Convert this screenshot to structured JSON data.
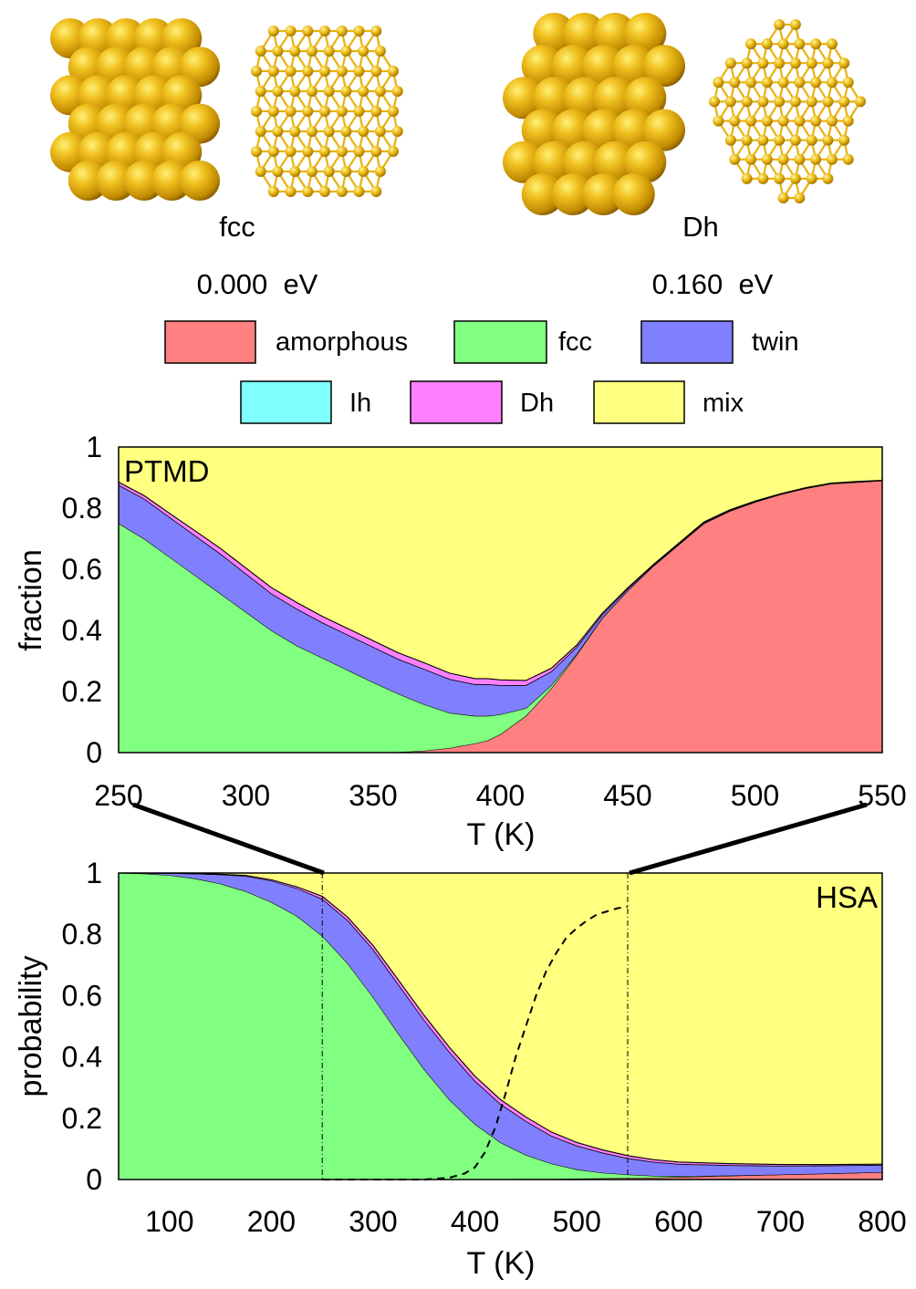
{
  "structures": [
    {
      "name": "fcc",
      "energy": "0.000  eV"
    },
    {
      "name": "Dh",
      "energy": "0.160  eV"
    }
  ],
  "legend": [
    {
      "label": "amorphous",
      "color": "#ff8080"
    },
    {
      "label": "fcc",
      "color": "#80ff80"
    },
    {
      "label": "twin",
      "color": "#8080ff"
    },
    {
      "label": "Ih",
      "color": "#80ffff"
    },
    {
      "label": "Dh",
      "color": "#ff80ff"
    },
    {
      "label": "mix",
      "color": "#ffff80"
    }
  ],
  "colors": {
    "gold": "#e8b20c",
    "gold_light": "#ffe35a",
    "gold_dark": "#9a6d00"
  },
  "chart_data": [
    {
      "type": "area",
      "stacked": true,
      "label": "PTMD",
      "xlabel": "T (K)",
      "ylabel": "fraction",
      "xlim": [
        250,
        550
      ],
      "ylim": [
        0,
        1
      ],
      "xticks": [
        "250",
        "300",
        "350",
        "400",
        "450",
        "500",
        "550"
      ],
      "yticks": [
        "0",
        "0.2",
        "0.4",
        "0.6",
        "0.8",
        "1"
      ],
      "x": [
        250,
        260,
        270,
        280,
        290,
        300,
        310,
        320,
        330,
        340,
        350,
        360,
        370,
        380,
        390,
        395,
        400,
        410,
        420,
        430,
        440,
        450,
        460,
        470,
        480,
        490,
        500,
        510,
        520,
        530,
        540,
        550
      ],
      "series": [
        {
          "name": "amorphous",
          "values": [
            0,
            0,
            0,
            0,
            0,
            0,
            0,
            0,
            0,
            0,
            0,
            0.002,
            0.006,
            0.015,
            0.03,
            0.04,
            0.06,
            0.12,
            0.21,
            0.32,
            0.44,
            0.53,
            0.61,
            0.68,
            0.75,
            0.79,
            0.82,
            0.845,
            0.865,
            0.88,
            0.885,
            0.89
          ]
        },
        {
          "name": "fcc",
          "values": [
            0.75,
            0.7,
            0.64,
            0.58,
            0.52,
            0.46,
            0.4,
            0.35,
            0.31,
            0.27,
            0.23,
            0.19,
            0.152,
            0.115,
            0.09,
            0.08,
            0.065,
            0.025,
            0.01,
            0.003,
            0.001,
            0,
            0,
            0,
            0,
            0,
            0,
            0,
            0,
            0,
            0,
            0
          ]
        },
        {
          "name": "twin",
          "values": [
            0.125,
            0.13,
            0.13,
            0.13,
            0.13,
            0.125,
            0.12,
            0.12,
            0.115,
            0.115,
            0.115,
            0.113,
            0.115,
            0.11,
            0.103,
            0.103,
            0.095,
            0.075,
            0.045,
            0.022,
            0.01,
            0.005,
            0.002,
            0.002,
            0.002,
            0.001,
            0.001,
            0,
            0,
            0,
            0,
            0
          ]
        },
        {
          "name": "Ih",
          "values": [
            0.001,
            0.001,
            0.001,
            0.001,
            0.001,
            0.001,
            0.001,
            0.001,
            0.001,
            0.001,
            0.001,
            0.001,
            0.001,
            0.001,
            0.001,
            0.001,
            0.001,
            0.001,
            0.001,
            0.001,
            0.001,
            0.001,
            0.001,
            0.001,
            0.001,
            0.001,
            0.001,
            0.001,
            0.001,
            0.001,
            0.001,
            0
          ]
        },
        {
          "name": "Dh",
          "values": [
            0.009,
            0.01,
            0.012,
            0.015,
            0.017,
            0.018,
            0.019,
            0.02,
            0.02,
            0.02,
            0.02,
            0.02,
            0.02,
            0.019,
            0.018,
            0.018,
            0.017,
            0.015,
            0.01,
            0.006,
            0.004,
            0.003,
            0.002,
            0.002,
            0.002,
            0.002,
            0.001,
            0.001,
            0.001,
            0.001,
            0.001,
            0.001
          ]
        }
      ],
      "remainder": "mix"
    },
    {
      "type": "area",
      "stacked": true,
      "label": "HSA",
      "xlabel": "T (K)",
      "ylabel": "probability",
      "xlim": [
        50,
        800
      ],
      "ylim": [
        0,
        1
      ],
      "xticks": [
        "100",
        "200",
        "300",
        "400",
        "500",
        "600",
        "700",
        "800"
      ],
      "yticks": [
        "0",
        "0.2",
        "0.4",
        "0.6",
        "0.8",
        "1"
      ],
      "x": [
        50,
        75,
        100,
        125,
        150,
        175,
        200,
        225,
        250,
        275,
        300,
        325,
        350,
        375,
        400,
        425,
        450,
        475,
        500,
        525,
        550,
        575,
        600,
        650,
        700,
        750,
        800
      ],
      "series": [
        {
          "name": "amorphous",
          "values": [
            0,
            0,
            0,
            0,
            0,
            0,
            0,
            0,
            0,
            0,
            0,
            0,
            0,
            0,
            0.001,
            0.001,
            0.002,
            0.002,
            0.003,
            0.004,
            0.005,
            0.006,
            0.008,
            0.012,
            0.016,
            0.02,
            0.024
          ]
        },
        {
          "name": "fcc",
          "values": [
            1.0,
            0.998,
            0.993,
            0.982,
            0.965,
            0.94,
            0.905,
            0.86,
            0.795,
            0.705,
            0.595,
            0.475,
            0.36,
            0.26,
            0.18,
            0.12,
            0.078,
            0.05,
            0.03,
            0.018,
            0.011,
            0.006,
            0.003,
            0.001,
            0,
            0,
            0
          ]
        },
        {
          "name": "twin",
          "values": [
            0,
            0.002,
            0.006,
            0.016,
            0.03,
            0.05,
            0.07,
            0.09,
            0.12,
            0.14,
            0.155,
            0.16,
            0.16,
            0.155,
            0.14,
            0.125,
            0.11,
            0.09,
            0.077,
            0.065,
            0.053,
            0.045,
            0.039,
            0.033,
            0.028,
            0.025,
            0.023
          ]
        },
        {
          "name": "Ih",
          "values": [
            0,
            0,
            0,
            0,
            0,
            0,
            0,
            0,
            0.001,
            0.001,
            0.001,
            0.001,
            0.001,
            0.001,
            0.001,
            0.001,
            0.001,
            0.001,
            0.001,
            0.001,
            0.001,
            0.001,
            0.001,
            0.001,
            0.001,
            0.001,
            0.001
          ]
        },
        {
          "name": "Dh",
          "values": [
            0,
            0,
            0,
            0,
            0.001,
            0.002,
            0.003,
            0.005,
            0.008,
            0.01,
            0.012,
            0.014,
            0.015,
            0.015,
            0.015,
            0.014,
            0.013,
            0.012,
            0.01,
            0.009,
            0.008,
            0.007,
            0.006,
            0.005,
            0.004,
            0.003,
            0.002
          ]
        }
      ],
      "remainder": "mix",
      "dashed_curve": {
        "name": "PTMD amorphous",
        "x": [
          250,
          300,
          350,
          375,
          390,
          400,
          410,
          420,
          430,
          440,
          450,
          460,
          470,
          480,
          490,
          500,
          510,
          520,
          530,
          540,
          550
        ],
        "values": [
          0,
          0,
          0,
          0.006,
          0.02,
          0.04,
          0.09,
          0.17,
          0.28,
          0.4,
          0.5,
          0.6,
          0.68,
          0.74,
          0.79,
          0.82,
          0.845,
          0.865,
          0.875,
          0.885,
          0.89
        ]
      },
      "zoom_range": [
        250,
        550
      ]
    }
  ]
}
